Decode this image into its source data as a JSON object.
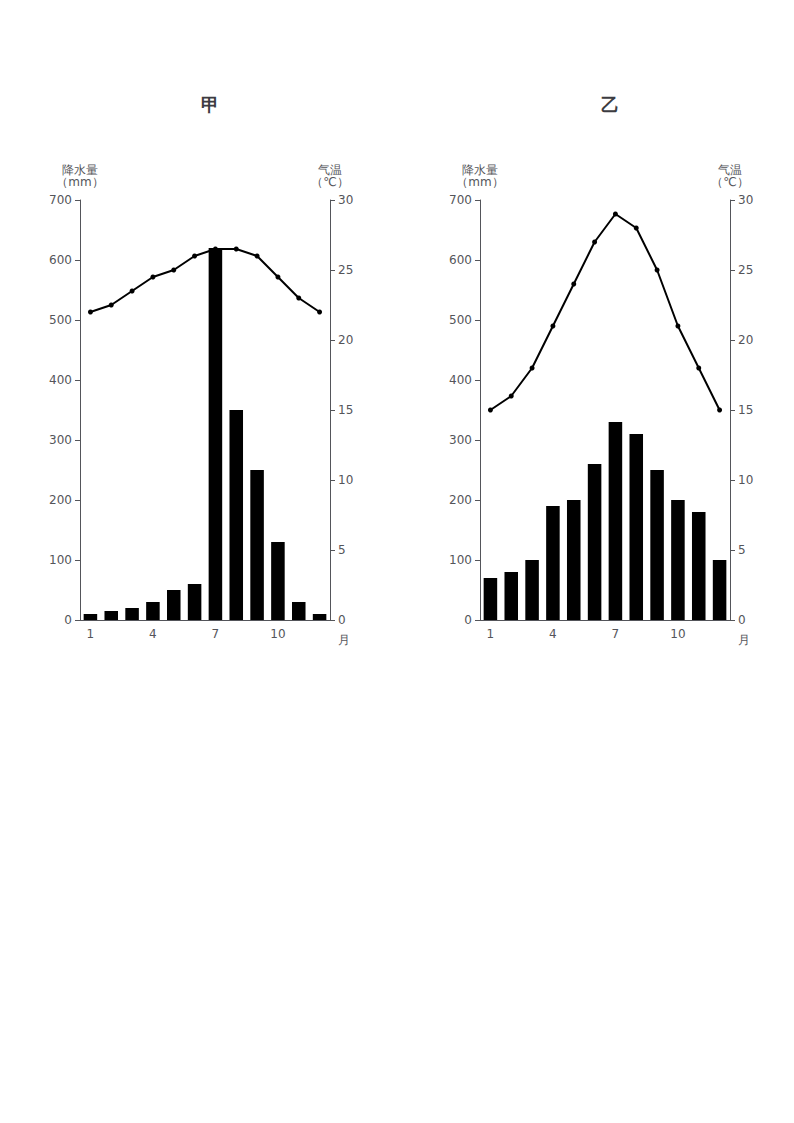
{
  "chart_data": [
    {
      "type": "bar",
      "title": "甲",
      "xlabel": "月",
      "ylabel": "降水量\n（mm）",
      "y2label": "气温\n（℃）",
      "categories": [
        "1",
        null,
        null,
        "4",
        null,
        null,
        "7",
        null,
        null,
        "10",
        null,
        null
      ],
      "series": [
        {
          "type": "bar",
          "color": "#000000",
          "values": [
            10,
            15,
            20,
            30,
            50,
            60,
            620,
            350,
            250,
            130,
            30,
            10
          ]
        },
        {
          "type": "line",
          "axis": "y2",
          "color": "#000000",
          "marker": "circle",
          "values": [
            22,
            22.5,
            23.5,
            24.5,
            25,
            26,
            26.5,
            26.5,
            26,
            24.5,
            23,
            22
          ]
        }
      ],
      "ylim": [
        0,
        700
      ],
      "yticks": [
        0,
        100,
        200,
        300,
        400,
        500,
        600,
        700
      ],
      "y2lim": [
        0,
        30
      ],
      "y2ticks": [
        0,
        5,
        10,
        15,
        20,
        25,
        30
      ],
      "grid": false
    },
    {
      "type": "bar",
      "title": "乙",
      "xlabel": "月",
      "ylabel": "降水量\n（mm）",
      "y2label": "气温\n（℃）",
      "categories": [
        "1",
        null,
        null,
        "4",
        null,
        null,
        "7",
        null,
        null,
        "10",
        null,
        null
      ],
      "series": [
        {
          "type": "bar",
          "color": "#000000",
          "values": [
            70,
            80,
            100,
            190,
            200,
            260,
            330,
            310,
            250,
            200,
            180,
            100
          ]
        },
        {
          "type": "line",
          "axis": "y2",
          "color": "#000000",
          "marker": "circle",
          "values": [
            15,
            16,
            18,
            21,
            24,
            27,
            29,
            28,
            25,
            21,
            18,
            15
          ]
        }
      ],
      "ylim": [
        0,
        700
      ],
      "yticks": [
        0,
        100,
        200,
        300,
        400,
        500,
        600,
        700
      ],
      "y2lim": [
        0,
        30
      ],
      "y2ticks": [
        0,
        5,
        10,
        15,
        20,
        25,
        30
      ],
      "grid": false
    }
  ]
}
